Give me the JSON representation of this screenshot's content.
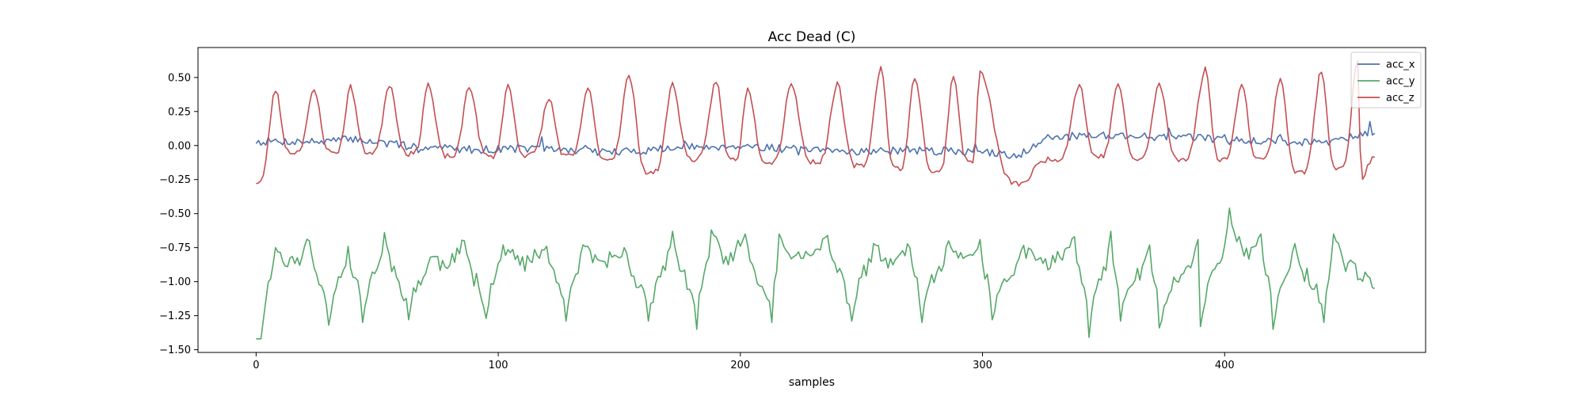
{
  "chart_data": {
    "type": "line",
    "title": "Acc Dead (C)",
    "xlabel": "samples",
    "ylabel": "",
    "xlim": [
      -24,
      483
    ],
    "ylim": [
      -1.52,
      0.72
    ],
    "x_ticks": [
      0,
      100,
      200,
      300,
      400
    ],
    "y_ticks": [
      0.5,
      0.25,
      0.0,
      -0.25,
      -0.5,
      -0.75,
      -1.0,
      -1.25,
      -1.5
    ],
    "x_tick_labels": [
      "0",
      "100",
      "200",
      "300",
      "400"
    ],
    "y_tick_labels": [
      "0.50",
      "0.25",
      "0.00",
      "−0.25",
      "−0.50",
      "−0.75",
      "−1.00",
      "−1.25",
      "−1.50"
    ],
    "grid": false,
    "legend": "top-right",
    "n_samples": 463,
    "series": [
      {
        "name": "acc_x",
        "color": "#4c72b0",
        "keypoints": [
          [
            0,
            0.03
          ],
          [
            30,
            0.03
          ],
          [
            40,
            0.05
          ],
          [
            60,
            0.0
          ],
          [
            90,
            -0.03
          ],
          [
            110,
            -0.02
          ],
          [
            150,
            -0.05
          ],
          [
            170,
            -0.02
          ],
          [
            200,
            0.0
          ],
          [
            230,
            -0.04
          ],
          [
            260,
            -0.04
          ],
          [
            290,
            -0.04
          ],
          [
            305,
            -0.06
          ],
          [
            315,
            -0.07
          ],
          [
            325,
            0.05
          ],
          [
            345,
            0.08
          ],
          [
            380,
            0.06
          ],
          [
            400,
            0.05
          ],
          [
            430,
            0.02
          ],
          [
            450,
            0.06
          ],
          [
            462,
            0.1
          ]
        ],
        "noise": 0.03
      },
      {
        "name": "acc_y",
        "color": "#55a868",
        "baseline": -1.05,
        "period": 16.4,
        "amplitude": [
          0.55,
          0.25,
          0.6,
          0.28,
          0.5
        ],
        "peaks": [
          [
            8,
            -0.75
          ],
          [
            22,
            -0.7
          ],
          [
            38,
            -0.74
          ],
          [
            53,
            -0.64
          ],
          [
            72,
            -0.82
          ],
          [
            86,
            -0.7
          ],
          [
            102,
            -0.73
          ],
          [
            120,
            -0.74
          ],
          [
            135,
            -0.73
          ],
          [
            152,
            -0.75
          ],
          [
            172,
            -0.63
          ],
          [
            188,
            -0.62
          ],
          [
            202,
            -0.65
          ],
          [
            216,
            -0.65
          ],
          [
            236,
            -0.66
          ],
          [
            255,
            -0.72
          ],
          [
            270,
            -0.75
          ],
          [
            286,
            -0.7
          ],
          [
            299,
            -0.69
          ],
          [
            316,
            -0.77
          ],
          [
            338,
            -0.67
          ],
          [
            353,
            -0.63
          ],
          [
            369,
            -0.73
          ],
          [
            389,
            -0.69
          ],
          [
            402,
            -0.46
          ],
          [
            415,
            -0.65
          ],
          [
            429,
            -0.72
          ],
          [
            445,
            -0.65
          ]
        ],
        "troughs": [
          [
            3,
            -1.28
          ],
          [
            30,
            -1.32
          ],
          [
            44,
            -1.3
          ],
          [
            63,
            -1.28
          ],
          [
            95,
            -1.27
          ],
          [
            128,
            -1.29
          ],
          [
            162,
            -1.29
          ],
          [
            182,
            -1.35
          ],
          [
            213,
            -1.3
          ],
          [
            246,
            -1.29
          ],
          [
            275,
            -1.3
          ],
          [
            304,
            -1.28
          ],
          [
            344,
            -1.41
          ],
          [
            357,
            -1.29
          ],
          [
            373,
            -1.34
          ],
          [
            390,
            -1.33
          ],
          [
            420,
            -1.35
          ],
          [
            441,
            -1.3
          ],
          [
            462,
            -1.05
          ]
        ]
      },
      {
        "name": "acc_z",
        "color": "#c44e52",
        "peaks": [
          [
            8,
            0.41
          ],
          [
            24,
            0.4
          ],
          [
            39,
            0.43
          ],
          [
            55,
            0.45
          ],
          [
            71,
            0.45
          ],
          [
            88,
            0.44
          ],
          [
            104,
            0.44
          ],
          [
            121,
            0.34
          ],
          [
            137,
            0.42
          ],
          [
            154,
            0.51
          ],
          [
            172,
            0.45
          ],
          [
            190,
            0.48
          ],
          [
            203,
            0.43
          ],
          [
            221,
            0.46
          ],
          [
            240,
            0.45
          ],
          [
            258,
            0.57
          ],
          [
            272,
            0.51
          ],
          [
            288,
            0.52
          ],
          [
            299,
            0.54
          ],
          [
            340,
            0.45
          ],
          [
            356,
            0.46
          ],
          [
            373,
            0.45
          ],
          [
            392,
            0.56
          ],
          [
            407,
            0.46
          ],
          [
            423,
            0.5
          ],
          [
            440,
            0.55
          ],
          [
            455,
            0.62
          ]
        ],
        "troughs": [
          [
            0,
            -0.27
          ],
          [
            15,
            -0.05
          ],
          [
            32,
            -0.05
          ],
          [
            47,
            -0.05
          ],
          [
            64,
            -0.06
          ],
          [
            80,
            -0.08
          ],
          [
            97,
            -0.08
          ],
          [
            112,
            -0.07
          ],
          [
            129,
            -0.08
          ],
          [
            145,
            -0.1
          ],
          [
            163,
            -0.2
          ],
          [
            181,
            -0.1
          ],
          [
            197,
            -0.1
          ],
          [
            212,
            -0.12
          ],
          [
            231,
            -0.12
          ],
          [
            249,
            -0.15
          ],
          [
            265,
            -0.17
          ],
          [
            281,
            -0.2
          ],
          [
            295,
            -0.12
          ],
          [
            316,
            -0.28
          ],
          [
            330,
            -0.1
          ],
          [
            348,
            -0.08
          ],
          [
            364,
            -0.1
          ],
          [
            382,
            -0.1
          ],
          [
            399,
            -0.1
          ],
          [
            415,
            -0.1
          ],
          [
            431,
            -0.2
          ],
          [
            447,
            -0.16
          ],
          [
            457,
            -0.24
          ],
          [
            462,
            -0.1
          ]
        ]
      }
    ]
  }
}
